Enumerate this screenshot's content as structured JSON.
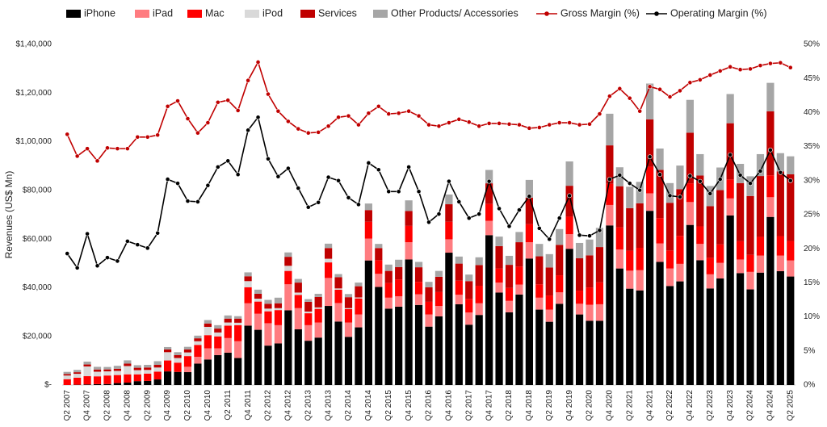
{
  "chart_data": {
    "type": "bar",
    "stacked": true,
    "y_label": "Revenues (US$ Mn)",
    "categories": [
      "Q2 2007",
      null,
      "Q4 2007",
      null,
      "Q2 2008",
      null,
      "Q4 2008",
      null,
      "Q2 2009",
      null,
      "Q4 2009",
      null,
      "Q2 2010",
      null,
      "Q4 2010",
      null,
      "Q2 2011",
      null,
      "Q4 2011",
      null,
      "Q2 2012",
      null,
      "Q4 2012",
      null,
      "Q2 2013",
      null,
      "Q4 2013",
      null,
      "Q2 2014",
      null,
      "Q4 2014",
      null,
      "Q2 2015",
      null,
      "Q4 2015",
      null,
      "Q2 2016",
      null,
      "Q4 2016",
      null,
      "Q2 2017",
      null,
      "Q4 2017",
      null,
      "Q2 2018",
      null,
      "Q4 2018",
      null,
      "Q2 2019",
      null,
      "Q4 2019",
      null,
      "Q2 2020",
      null,
      "Q4 2020",
      null,
      "Q2 2021",
      null,
      "Q4 2021",
      null,
      "Q2 2022",
      null,
      "Q4 2022",
      null,
      "Q2 2023",
      null,
      "Q4 2023",
      null,
      "Q2 2024",
      null,
      "Q4 2024",
      null,
      "Q2 2025"
    ],
    "series": [
      {
        "name": "iPhone",
        "color": "#000000",
        "values": [
          0,
          118,
          241,
          378,
          419,
          806,
          1000,
          1600,
          1700,
          2300,
          5600,
          5400,
          5300,
          8800,
          10500,
          12300,
          13300,
          11100,
          24400,
          22700,
          16200,
          17100,
          30700,
          22900,
          18200,
          19500,
          32500,
          26100,
          19800,
          23700,
          51200,
          40300,
          31400,
          32200,
          51600,
          32900,
          24000,
          28200,
          54400,
          33200,
          24800,
          28800,
          61600,
          38000,
          29900,
          37200,
          52000,
          31000,
          26000,
          33400,
          56000,
          29000,
          26400,
          26400,
          65600,
          47900,
          39600,
          38900,
          71600,
          50600,
          40700,
          42600,
          65800,
          51300,
          39700,
          43800,
          69700,
          46000,
          39300,
          46200,
          69100,
          46800,
          44600
        ]
      },
      {
        "name": "iPad",
        "color": "#ff7c80",
        "values": [
          0,
          0,
          0,
          0,
          0,
          0,
          0,
          0,
          0,
          0,
          0,
          0,
          2200,
          2800,
          4600,
          2800,
          6000,
          6900,
          9200,
          6600,
          9200,
          7500,
          10700,
          8700,
          6400,
          6200,
          11500,
          7600,
          5900,
          5300,
          9000,
          5400,
          4500,
          4300,
          7100,
          4400,
          5000,
          4300,
          5500,
          3900,
          5000,
          4800,
          5900,
          4100,
          4700,
          4100,
          6700,
          4900,
          5000,
          4700,
          6000,
          4400,
          6600,
          6800,
          8400,
          7800,
          7400,
          8300,
          7200,
          7600,
          7200,
          7200,
          9400,
          6700,
          5800,
          6400,
          7000,
          5600,
          7200,
          7000,
          8100,
          6400,
          6600
        ]
      },
      {
        "name": "Mac",
        "color": "#ff0000",
        "values": [
          2400,
          2900,
          3400,
          3200,
          3500,
          3300,
          3400,
          2800,
          3000,
          3200,
          4500,
          3800,
          4400,
          4900,
          5400,
          4900,
          5100,
          6600,
          6600,
          5000,
          4900,
          6200,
          5500,
          5400,
          4900,
          5600,
          6400,
          5500,
          5500,
          6600,
          6900,
          5600,
          6000,
          6900,
          6700,
          5100,
          5200,
          5700,
          7200,
          5800,
          5600,
          7200,
          6900,
          5800,
          5300,
          7400,
          7400,
          5500,
          5800,
          7000,
          7200,
          5400,
          7100,
          9000,
          8700,
          9100,
          8200,
          9200,
          10900,
          10400,
          7400,
          11500,
          7700,
          7200,
          6800,
          7600,
          7800,
          7500,
          7000,
          7700,
          9000,
          8000,
          8000
        ]
      },
      {
        "name": "iPod",
        "color": "#d9d9d9",
        "values": [
          1500,
          1600,
          4000,
          1900,
          1700,
          1700,
          3400,
          1700,
          1500,
          1700,
          3400,
          1900,
          1500,
          1500,
          3400,
          1600,
          1300,
          1000,
          2500,
          1200,
          1100,
          800,
          2100,
          1000,
          700,
          600,
          1500,
          500,
          400,
          400,
          0,
          0,
          0,
          0,
          0,
          0,
          0,
          0,
          0,
          0,
          0,
          0,
          0,
          0,
          0,
          0,
          0,
          0,
          0,
          0,
          0,
          0,
          0,
          0,
          0,
          0,
          0,
          0,
          0,
          0,
          0,
          0,
          0,
          0,
          0,
          0,
          0,
          0,
          0,
          0,
          0,
          0,
          0
        ]
      },
      {
        "name": "Services",
        "color": "#c00000",
        "values": [
          600,
          650,
          800,
          900,
          800,
          900,
          1000,
          1000,
          1000,
          1100,
          1100,
          1200,
          1200,
          1200,
          1400,
          1600,
          1600,
          1700,
          2000,
          2000,
          2000,
          2000,
          3700,
          4100,
          4000,
          4300,
          4400,
          4600,
          4500,
          4600,
          4800,
          5000,
          5000,
          5100,
          6100,
          6000,
          6000,
          6300,
          7200,
          7000,
          7300,
          8500,
          8500,
          9200,
          9500,
          10000,
          10900,
          11500,
          11500,
          12500,
          12700,
          13300,
          13200,
          14500,
          15800,
          16900,
          17500,
          18300,
          19500,
          19800,
          19600,
          19200,
          20800,
          20900,
          21200,
          22300,
          23100,
          23900,
          24200,
          25000,
          26300,
          26600,
          27400
        ]
      },
      {
        "name": "Other Products/ Accessories",
        "color": "#a6a6a6",
        "values": [
          900,
          950,
          1170,
          1100,
          1000,
          1200,
          1350,
          1050,
          1100,
          1500,
          1000,
          1200,
          1100,
          1100,
          1400,
          1400,
          1300,
          1000,
          1600,
          1700,
          1600,
          2300,
          1800,
          1500,
          1100,
          1300,
          1800,
          1300,
          1300,
          1500,
          2700,
          1700,
          2600,
          3000,
          4400,
          2200,
          2200,
          2400,
          4000,
          2900,
          2700,
          3200,
          5500,
          3900,
          3700,
          4200,
          7300,
          5100,
          5500,
          6500,
          10000,
          6300,
          6500,
          7900,
          13000,
          7800,
          8800,
          8800,
          14700,
          8800,
          8100,
          9700,
          13500,
          8800,
          8300,
          9300,
          12000,
          7900,
          8100,
          9000,
          11700,
          7500,
          7400
        ]
      },
      {
        "name": "Gross Margin (%)",
        "color": "#c00000",
        "type": "line",
        "axis": "y2",
        "values": [
          36.8,
          33.6,
          34.7,
          32.9,
          34.8,
          34.7,
          34.7,
          36.4,
          36.4,
          36.7,
          40.9,
          41.7,
          39.1,
          37.0,
          38.5,
          41.5,
          41.8,
          40.3,
          44.7,
          47.4,
          42.7,
          40.2,
          38.7,
          37.6,
          37.0,
          37.1,
          38.0,
          39.3,
          39.5,
          38.2,
          39.9,
          40.9,
          39.8,
          39.9,
          40.2,
          39.5,
          38.2,
          38.0,
          38.5,
          39.0,
          38.6,
          38.0,
          38.4,
          38.4,
          38.3,
          38.2,
          37.7,
          37.8,
          38.2,
          38.5,
          38.5,
          38.2,
          38.3,
          39.8,
          42.4,
          43.5,
          42.1,
          40.2,
          43.8,
          43.4,
          42.3,
          43.2,
          44.4,
          44.8,
          45.5,
          46.1,
          46.7,
          46.3,
          46.4,
          46.9,
          47.2,
          47.3,
          46.6
        ]
      },
      {
        "name": "Operating Margin (%)",
        "color": "#000000",
        "type": "line",
        "axis": "y2",
        "values": [
          19.3,
          17.2,
          22.2,
          17.5,
          18.7,
          18.2,
          21.1,
          20.6,
          20.1,
          22.3,
          30.2,
          29.6,
          27.0,
          26.9,
          29.3,
          32.0,
          32.9,
          30.9,
          37.4,
          39.3,
          33.2,
          30.6,
          31.8,
          28.9,
          26.1,
          26.8,
          30.5,
          30.0,
          27.5,
          26.5,
          32.6,
          31.6,
          28.4,
          28.4,
          32.0,
          28.4,
          23.9,
          25.1,
          29.9,
          26.9,
          24.5,
          25.1,
          29.9,
          25.9,
          23.3,
          25.7,
          27.7,
          23.0,
          21.4,
          24.5,
          27.8,
          22.0,
          21.9,
          22.7,
          30.2,
          30.8,
          29.6,
          28.6,
          33.5,
          30.9,
          27.8,
          27.6,
          30.7,
          29.9,
          28.1,
          30.2,
          33.8,
          30.8,
          29.6,
          31.4,
          34.5,
          31.2,
          30.0
        ]
      }
    ],
    "ylim": [
      0,
      140000
    ],
    "yticks": [
      {
        "value": 0,
        "label": "$-"
      },
      {
        "value": 20000,
        "label": "$20,000"
      },
      {
        "value": 40000,
        "label": "$40,000"
      },
      {
        "value": 60000,
        "label": "$60,000"
      },
      {
        "value": 80000,
        "label": "$80,000"
      },
      {
        "value": 100000,
        "label": "$1,00,000"
      },
      {
        "value": 120000,
        "label": "$1,20,000"
      },
      {
        "value": 140000,
        "label": "$1,40,000"
      }
    ],
    "y2lim": [
      0,
      50
    ],
    "y2ticks": [
      {
        "value": 0,
        "label": "0%"
      },
      {
        "value": 5,
        "label": "5%"
      },
      {
        "value": 10,
        "label": "10%"
      },
      {
        "value": 15,
        "label": "15%"
      },
      {
        "value": 20,
        "label": "20%"
      },
      {
        "value": 25,
        "label": "25%"
      },
      {
        "value": 30,
        "label": "30%"
      },
      {
        "value": 35,
        "label": "35%"
      },
      {
        "value": 40,
        "label": "40%"
      },
      {
        "value": 45,
        "label": "45%"
      },
      {
        "value": 50,
        "label": "50%"
      }
    ],
    "legend": "top"
  }
}
